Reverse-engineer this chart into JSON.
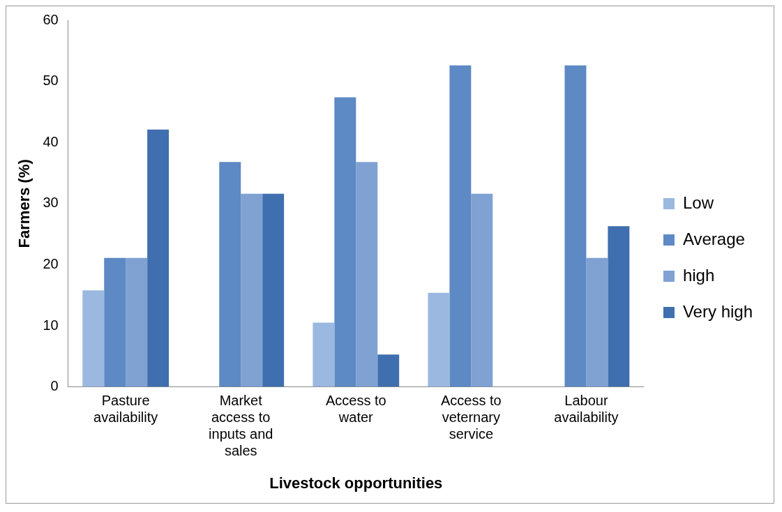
{
  "chart_data": {
    "type": "bar",
    "xlabel": "Livestock opportunities",
    "ylabel": "Farmers (%)",
    "categories": [
      "Pasture availability",
      "Market access to inputs and sales",
      "Access to water",
      "Access to veternary service",
      "Labour availability"
    ],
    "series": [
      {
        "name": "Low",
        "color": "#9bb8e0",
        "values": [
          15.8,
          0,
          10.5,
          15.4,
          0
        ]
      },
      {
        "name": "Average",
        "color": "#5d89c4",
        "values": [
          21.1,
          36.8,
          47.4,
          52.6,
          52.6
        ]
      },
      {
        "name": "high",
        "color": "#7fa2d3",
        "values": [
          21.1,
          31.6,
          36.8,
          31.6,
          21.1
        ]
      },
      {
        "name": "Very high",
        "color": "#3f6fae",
        "values": [
          42.1,
          31.6,
          5.3,
          0,
          26.3
        ]
      }
    ],
    "ylim": [
      0,
      60
    ],
    "yticks": [
      0,
      10,
      20,
      30,
      40,
      50,
      60
    ],
    "grid": false,
    "legend": "right"
  }
}
